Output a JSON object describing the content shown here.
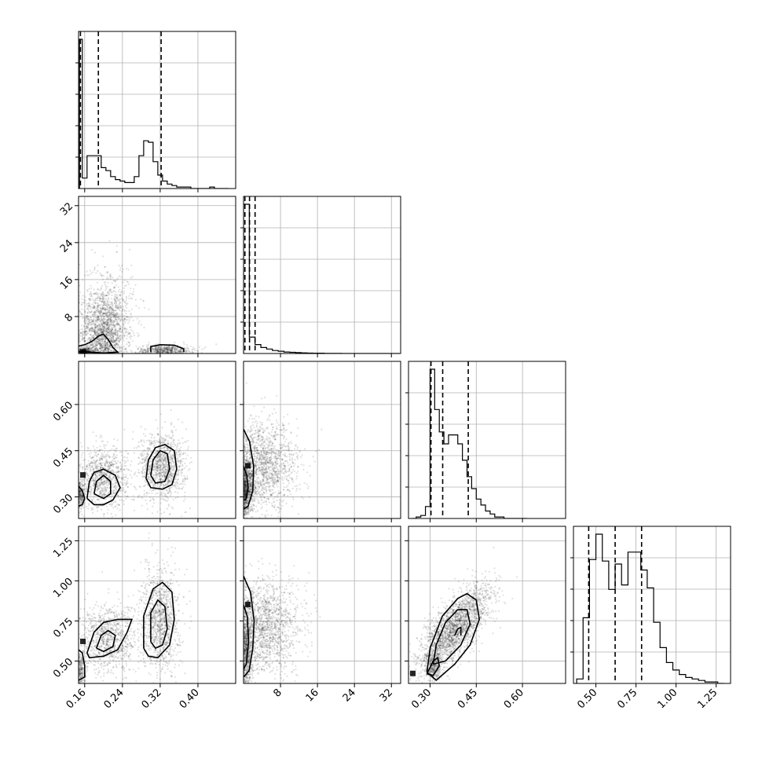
{
  "chart_data": {
    "type": "corner",
    "title": "",
    "parameters": [
      {
        "index": 0,
        "label": "",
        "range": [
          0.147,
          0.48
        ],
        "ticks": [
          0.16,
          0.24,
          0.32,
          0.4
        ],
        "tick_labels": [
          "0.16",
          "0.24",
          "0.32",
          "0.40"
        ]
      },
      {
        "index": 1,
        "label": "",
        "range": [
          0.0,
          34.0
        ],
        "ticks": [
          8,
          16,
          24,
          32
        ],
        "tick_labels": [
          "8",
          "16",
          "24",
          "32"
        ]
      },
      {
        "index": 2,
        "label": "",
        "range": [
          0.23,
          0.74
        ],
        "ticks": [
          0.3,
          0.45,
          0.6
        ],
        "tick_labels": [
          "0.30",
          "0.45",
          "0.60"
        ]
      },
      {
        "index": 3,
        "label": "",
        "range": [
          0.36,
          1.34
        ],
        "ticks": [
          0.5,
          0.75,
          1.0,
          1.25
        ],
        "tick_labels": [
          "0.50",
          "0.75",
          "1.00",
          "1.25"
        ]
      }
    ],
    "histograms": [
      {
        "param": 0,
        "bin_edges": [
          0.149,
          0.155,
          0.165,
          0.175,
          0.185,
          0.195,
          0.205,
          0.215,
          0.225,
          0.235,
          0.245,
          0.255,
          0.265,
          0.275,
          0.285,
          0.295,
          0.305,
          0.315,
          0.325,
          0.335,
          0.345,
          0.355,
          0.365,
          0.375,
          0.385,
          0.395,
          0.405,
          0.415,
          0.425,
          0.435,
          0.445,
          0.455,
          0.465
        ],
        "counts": [
          1.0,
          0.07,
          0.22,
          0.22,
          0.22,
          0.14,
          0.12,
          0.08,
          0.06,
          0.05,
          0.04,
          0.04,
          0.08,
          0.22,
          0.32,
          0.31,
          0.18,
          0.09,
          0.05,
          0.03,
          0.02,
          0.01,
          0.01,
          0.01,
          0.0,
          0.0,
          0.0,
          0.0,
          0.01,
          0.0,
          0.0,
          0.0
        ],
        "quantiles": [
          0.151,
          0.189,
          0.322
        ]
      },
      {
        "param": 1,
        "bin_edges": [
          0.0,
          1.25,
          2.5,
          3.75,
          5.0,
          6.25,
          7.5,
          8.75,
          10.0,
          11.25,
          12.5,
          13.75,
          15.0,
          16.25,
          17.5,
          18.75,
          20.0,
          21.25,
          22.5,
          23.75,
          25.0,
          26.25,
          27.5,
          28.75,
          30.0,
          31.25,
          32.5,
          33.75
        ],
        "counts": [
          1.0,
          0.11,
          0.06,
          0.04,
          0.03,
          0.02,
          0.015,
          0.01,
          0.008,
          0.006,
          0.004,
          0.003,
          0.002,
          0.002,
          0.001,
          0.001,
          0.001,
          0.0,
          0.0,
          0.0,
          0.0,
          0.0,
          0.0,
          0.0,
          0.0,
          0.0,
          0.0
        ],
        "quantiles": [
          0.3,
          1.3,
          2.5
        ]
      },
      {
        "param": 2,
        "bin_edges": [
          0.24,
          0.255,
          0.27,
          0.285,
          0.3,
          0.315,
          0.33,
          0.345,
          0.36,
          0.375,
          0.39,
          0.405,
          0.42,
          0.435,
          0.45,
          0.465,
          0.48,
          0.495,
          0.51,
          0.525,
          0.54,
          0.555,
          0.57,
          0.585,
          0.6,
          0.615
        ],
        "counts": [
          0.0,
          0.01,
          0.02,
          0.08,
          1.0,
          0.73,
          0.58,
          0.5,
          0.56,
          0.56,
          0.5,
          0.39,
          0.28,
          0.2,
          0.13,
          0.09,
          0.05,
          0.03,
          0.01,
          0.01,
          0.0,
          0.0,
          0.0,
          0.0,
          0.0
        ],
        "quantiles": [
          0.303,
          0.341,
          0.424
        ]
      },
      {
        "param": 3,
        "bin_edges": [
          0.38,
          0.42,
          0.46,
          0.5,
          0.54,
          0.58,
          0.62,
          0.66,
          0.7,
          0.74,
          0.78,
          0.82,
          0.86,
          0.9,
          0.94,
          0.98,
          1.02,
          1.06,
          1.1,
          1.14,
          1.18,
          1.22,
          1.26,
          1.3
        ],
        "counts": [
          0.03,
          0.44,
          0.83,
          1.0,
          0.82,
          0.63,
          0.8,
          0.66,
          0.88,
          0.88,
          0.76,
          0.64,
          0.41,
          0.24,
          0.14,
          0.09,
          0.06,
          0.04,
          0.03,
          0.02,
          0.01,
          0.01,
          0.0
        ],
        "quantiles": [
          0.455,
          0.62,
          0.785
        ]
      }
    ],
    "scatter_panels": [
      {
        "x": 0,
        "y": 1,
        "clusters": [
          {
            "cx": 0.2,
            "cy": 4.5,
            "sx": 0.025,
            "sy": 4.0,
            "n": 1400
          },
          {
            "cx": 0.21,
            "cy": 10.0,
            "sx": 0.03,
            "sy": 5.0,
            "n": 500
          },
          {
            "cx": 0.33,
            "cy": 0.7,
            "sx": 0.03,
            "sy": 0.6,
            "n": 500
          },
          {
            "cx": 0.16,
            "cy": 0.4,
            "sx": 0.012,
            "sy": 0.4,
            "n": 350
          }
        ]
      },
      {
        "x": 0,
        "y": 2,
        "clusters": [
          {
            "cx": 0.15,
            "cy": 0.305,
            "sx": 0.005,
            "sy": 0.02,
            "n": 300
          },
          {
            "cx": 0.2,
            "cy": 0.36,
            "sx": 0.025,
            "sy": 0.05,
            "n": 900
          },
          {
            "cx": 0.325,
            "cy": 0.4,
            "sx": 0.025,
            "sy": 0.055,
            "n": 1100
          }
        ]
      },
      {
        "x": 0,
        "y": 3,
        "clusters": [
          {
            "cx": 0.15,
            "cy": 0.45,
            "sx": 0.006,
            "sy": 0.05,
            "n": 300
          },
          {
            "cx": 0.21,
            "cy": 0.64,
            "sx": 0.03,
            "sy": 0.11,
            "n": 900
          },
          {
            "cx": 0.32,
            "cy": 0.76,
            "sx": 0.02,
            "sy": 0.16,
            "n": 1100
          }
        ]
      },
      {
        "x": 1,
        "y": 2,
        "clusters": [
          {
            "cx": 0.6,
            "cy": 0.32,
            "sx": 0.8,
            "sy": 0.04,
            "n": 700
          },
          {
            "cx": 4.0,
            "cy": 0.4,
            "sx": 4.0,
            "sy": 0.07,
            "n": 1500
          }
        ]
      },
      {
        "x": 1,
        "y": 3,
        "clusters": [
          {
            "cx": 0.6,
            "cy": 0.55,
            "sx": 0.8,
            "sy": 0.14,
            "n": 700
          },
          {
            "cx": 4.5,
            "cy": 0.72,
            "sx": 4.0,
            "sy": 0.14,
            "n": 1500
          }
        ]
      },
      {
        "x": 2,
        "y": 3,
        "clusters": [
          {
            "cx": 0.38,
            "cy": 0.7,
            "sx": 0.06,
            "sy": 0.14,
            "n": 2200,
            "rho": 0.75
          },
          {
            "cx": 0.31,
            "cy": 0.46,
            "sx": 0.012,
            "sy": 0.04,
            "n": 300
          }
        ]
      }
    ],
    "contours": [
      {
        "x": 0,
        "y": 1,
        "levels": [
          [
            [
              0.147,
              1.6
            ],
            [
              0.16,
              1.9
            ],
            [
              0.175,
              2.6
            ],
            [
              0.19,
              3.8
            ],
            [
              0.2,
              4.2
            ],
            [
              0.21,
              3.0
            ],
            [
              0.22,
              1.3
            ],
            [
              0.23,
              0.3
            ],
            [
              0.2,
              0.1
            ],
            [
              0.17,
              0.3
            ],
            [
              0.147,
              0.4
            ]
          ],
          [
            [
              0.3,
              0.3
            ],
            [
              0.3,
              1.5
            ],
            [
              0.32,
              1.9
            ],
            [
              0.35,
              1.8
            ],
            [
              0.37,
              1.0
            ],
            [
              0.37,
              0.3
            ]
          ]
        ]
      },
      {
        "x": 0,
        "y": 2,
        "levels": [
          [
            [
              0.147,
              0.335
            ],
            [
              0.155,
              0.32
            ],
            [
              0.16,
              0.295
            ],
            [
              0.155,
              0.275
            ],
            [
              0.147,
              0.27
            ]
          ],
          [
            [
              0.165,
              0.295
            ],
            [
              0.17,
              0.35
            ],
            [
              0.18,
              0.38
            ],
            [
              0.2,
              0.39
            ],
            [
              0.225,
              0.37
            ],
            [
              0.235,
              0.33
            ],
            [
              0.22,
              0.29
            ],
            [
              0.2,
              0.275
            ],
            [
              0.18,
              0.275
            ],
            [
              0.165,
              0.295
            ]
          ],
          [
            [
              0.18,
              0.31
            ],
            [
              0.185,
              0.35
            ],
            [
              0.2,
              0.37
            ],
            [
              0.215,
              0.35
            ],
            [
              0.215,
              0.31
            ],
            [
              0.2,
              0.295
            ],
            [
              0.18,
              0.31
            ]
          ],
          [
            [
              0.29,
              0.36
            ],
            [
              0.295,
              0.42
            ],
            [
              0.31,
              0.46
            ],
            [
              0.33,
              0.47
            ],
            [
              0.35,
              0.45
            ],
            [
              0.355,
              0.39
            ],
            [
              0.345,
              0.34
            ],
            [
              0.325,
              0.325
            ],
            [
              0.3,
              0.33
            ],
            [
              0.29,
              0.36
            ]
          ],
          [
            [
              0.3,
              0.37
            ],
            [
              0.305,
              0.42
            ],
            [
              0.32,
              0.45
            ],
            [
              0.335,
              0.44
            ],
            [
              0.34,
              0.39
            ],
            [
              0.33,
              0.35
            ],
            [
              0.31,
              0.345
            ],
            [
              0.3,
              0.37
            ]
          ]
        ]
      },
      {
        "x": 0,
        "y": 3,
        "levels": [
          [
            [
              0.147,
              0.57
            ],
            [
              0.155,
              0.55
            ],
            [
              0.16,
              0.47
            ],
            [
              0.16,
              0.4
            ],
            [
              0.147,
              0.38
            ]
          ],
          [
            [
              0.165,
              0.55
            ],
            [
              0.18,
              0.68
            ],
            [
              0.2,
              0.74
            ],
            [
              0.23,
              0.76
            ],
            [
              0.26,
              0.76
            ],
            [
              0.25,
              0.68
            ],
            [
              0.23,
              0.57
            ],
            [
              0.2,
              0.53
            ],
            [
              0.17,
              0.52
            ],
            [
              0.165,
              0.55
            ]
          ],
          [
            [
              0.185,
              0.58
            ],
            [
              0.195,
              0.66
            ],
            [
              0.21,
              0.69
            ],
            [
              0.225,
              0.66
            ],
            [
              0.22,
              0.59
            ],
            [
              0.2,
              0.56
            ],
            [
              0.185,
              0.58
            ]
          ],
          [
            [
              0.285,
              0.58
            ],
            [
              0.285,
              0.78
            ],
            [
              0.305,
              0.95
            ],
            [
              0.325,
              0.99
            ],
            [
              0.345,
              0.93
            ],
            [
              0.35,
              0.76
            ],
            [
              0.34,
              0.6
            ],
            [
              0.315,
              0.52
            ],
            [
              0.295,
              0.53
            ],
            [
              0.285,
              0.58
            ]
          ],
          [
            [
              0.3,
              0.62
            ],
            [
              0.3,
              0.8
            ],
            [
              0.315,
              0.88
            ],
            [
              0.33,
              0.84
            ],
            [
              0.335,
              0.7
            ],
            [
              0.325,
              0.6
            ],
            [
              0.31,
              0.58
            ],
            [
              0.3,
              0.62
            ]
          ]
        ]
      },
      {
        "x": 1,
        "y": 2,
        "levels": [
          [
            [
              0.0,
              0.52
            ],
            [
              1.3,
              0.48
            ],
            [
              2.2,
              0.4
            ],
            [
              2.0,
              0.32
            ],
            [
              1.0,
              0.27
            ],
            [
              0.0,
              0.26
            ]
          ],
          [
            [
              0.0,
              0.4
            ],
            [
              0.7,
              0.37
            ],
            [
              1.0,
              0.33
            ],
            [
              0.5,
              0.29
            ],
            [
              0.0,
              0.29
            ]
          ]
        ]
      },
      {
        "x": 1,
        "y": 3,
        "levels": [
          [
            [
              0.0,
              1.03
            ],
            [
              1.5,
              0.93
            ],
            [
              2.3,
              0.75
            ],
            [
              2.0,
              0.58
            ],
            [
              1.2,
              0.44
            ],
            [
              0.0,
              0.4
            ]
          ],
          [
            [
              0.0,
              0.85
            ],
            [
              0.8,
              0.78
            ],
            [
              1.1,
              0.62
            ],
            [
              0.6,
              0.48
            ],
            [
              0.0,
              0.45
            ]
          ]
        ]
      },
      {
        "x": 2,
        "y": 3,
        "levels": [
          [
            [
              0.29,
              0.43
            ],
            [
              0.3,
              0.58
            ],
            [
              0.34,
              0.78
            ],
            [
              0.39,
              0.89
            ],
            [
              0.42,
              0.92
            ],
            [
              0.45,
              0.88
            ],
            [
              0.46,
              0.76
            ],
            [
              0.43,
              0.6
            ],
            [
              0.38,
              0.48
            ],
            [
              0.32,
              0.38
            ],
            [
              0.29,
              0.43
            ]
          ],
          [
            [
              0.31,
              0.48
            ],
            [
              0.32,
              0.6
            ],
            [
              0.35,
              0.74
            ],
            [
              0.39,
              0.82
            ],
            [
              0.42,
              0.82
            ],
            [
              0.43,
              0.73
            ],
            [
              0.4,
              0.6
            ],
            [
              0.35,
              0.5
            ],
            [
              0.31,
              0.48
            ]
          ],
          [
            [
              0.38,
              0.66
            ],
            [
              0.39,
              0.7
            ],
            [
              0.4,
              0.71
            ],
            [
              0.4,
              0.66
            ]
          ],
          [
            [
              0.29,
              0.42
            ],
            [
              0.31,
              0.5
            ],
            [
              0.325,
              0.52
            ],
            [
              0.33,
              0.47
            ],
            [
              0.31,
              0.41
            ],
            [
              0.29,
              0.42
            ]
          ]
        ]
      }
    ],
    "grid": true,
    "legend": "none"
  }
}
